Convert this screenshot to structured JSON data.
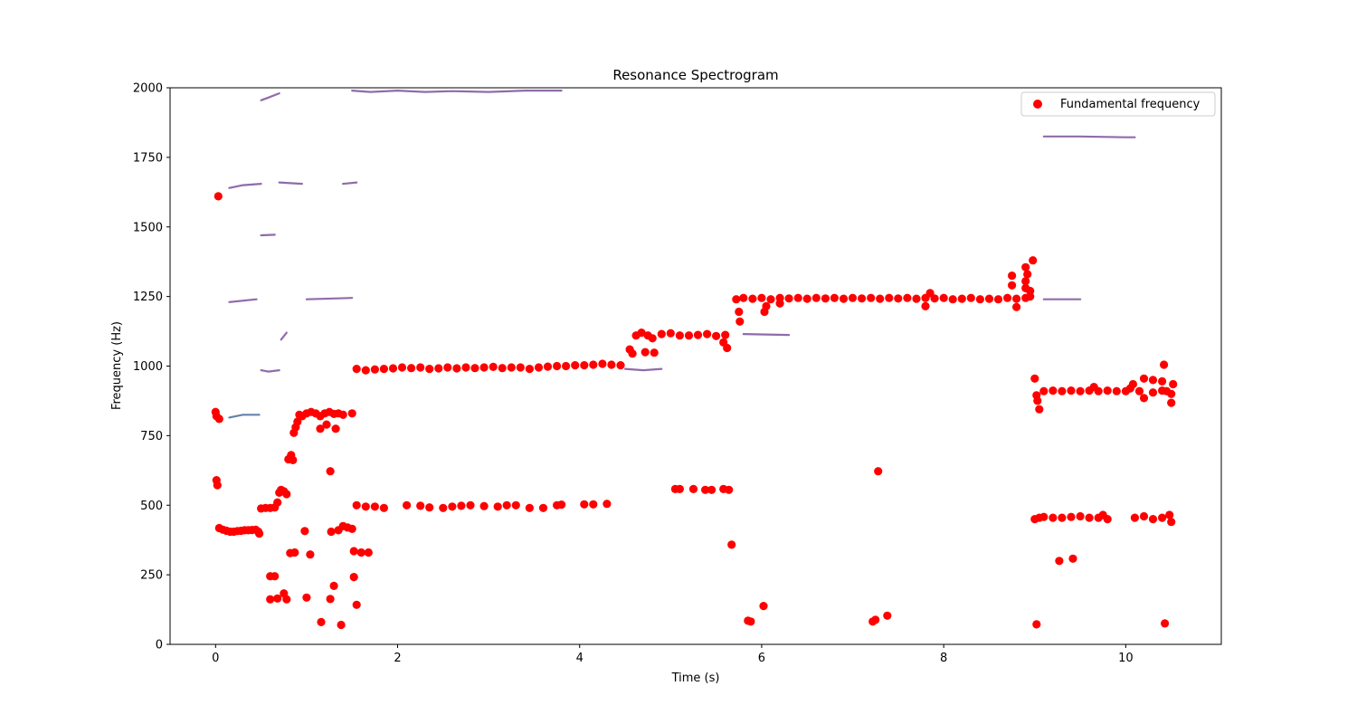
{
  "chart_data": {
    "type": "scatter",
    "title": "Resonance Spectrogram",
    "xlabel": "Time (s)",
    "ylabel": "Frequency (Hz)",
    "xlim": [
      -0.5,
      11.05
    ],
    "ylim": [
      0,
      2000
    ],
    "xticks": [
      0,
      2,
      4,
      6,
      8,
      10
    ],
    "yticks": [
      0,
      250,
      500,
      750,
      1000,
      1250,
      1500,
      1750,
      2000
    ],
    "grid": false,
    "legend_position": "top-right",
    "series": [
      {
        "name": "Fundamental frequency",
        "color": "#ff0000",
        "points": [
          [
            0.03,
            1610
          ],
          [
            0.0,
            835
          ],
          [
            0.01,
            820
          ],
          [
            0.04,
            810
          ],
          [
            0.01,
            590
          ],
          [
            0.02,
            572
          ],
          [
            0.04,
            418
          ],
          [
            0.08,
            412
          ],
          [
            0.12,
            408
          ],
          [
            0.16,
            405
          ],
          [
            0.2,
            405
          ],
          [
            0.24,
            407
          ],
          [
            0.28,
            408
          ],
          [
            0.32,
            410
          ],
          [
            0.36,
            410
          ],
          [
            0.4,
            411
          ],
          [
            0.44,
            412
          ],
          [
            0.47,
            405
          ],
          [
            0.48,
            398
          ],
          [
            0.5,
            488
          ],
          [
            0.55,
            490
          ],
          [
            0.6,
            490
          ],
          [
            0.65,
            492
          ],
          [
            0.68,
            510
          ],
          [
            0.7,
            545
          ],
          [
            0.72,
            555
          ],
          [
            0.75,
            550
          ],
          [
            0.78,
            540
          ],
          [
            0.8,
            665
          ],
          [
            0.83,
            680
          ],
          [
            0.85,
            662
          ],
          [
            0.86,
            760
          ],
          [
            0.88,
            780
          ],
          [
            0.9,
            800
          ],
          [
            0.92,
            825
          ],
          [
            0.95,
            820
          ],
          [
            1.0,
            830
          ],
          [
            1.05,
            835
          ],
          [
            1.1,
            830
          ],
          [
            1.15,
            820
          ],
          [
            1.2,
            830
          ],
          [
            1.25,
            835
          ],
          [
            1.3,
            828
          ],
          [
            1.35,
            830
          ],
          [
            1.4,
            825
          ],
          [
            1.5,
            830
          ],
          [
            1.15,
            775
          ],
          [
            1.22,
            790
          ],
          [
            1.32,
            775
          ],
          [
            1.26,
            622
          ],
          [
            1.4,
            425
          ],
          [
            1.45,
            420
          ],
          [
            1.35,
            410
          ],
          [
            1.27,
            405
          ],
          [
            1.5,
            415
          ],
          [
            0.6,
            245
          ],
          [
            0.65,
            245
          ],
          [
            0.6,
            162
          ],
          [
            0.68,
            165
          ],
          [
            0.75,
            183
          ],
          [
            0.78,
            162
          ],
          [
            0.82,
            328
          ],
          [
            0.87,
            330
          ],
          [
            0.98,
            407
          ],
          [
            1.0,
            168
          ],
          [
            1.04,
            323
          ],
          [
            1.16,
            80
          ],
          [
            1.26,
            163
          ],
          [
            1.3,
            210
          ],
          [
            1.38,
            70
          ],
          [
            1.52,
            335
          ],
          [
            1.6,
            330
          ],
          [
            1.68,
            330
          ],
          [
            1.52,
            242
          ],
          [
            1.55,
            142
          ],
          [
            1.55,
            500
          ],
          [
            1.65,
            495
          ],
          [
            1.75,
            495
          ],
          [
            1.85,
            490
          ],
          [
            2.1,
            500
          ],
          [
            2.25,
            498
          ],
          [
            2.35,
            492
          ],
          [
            2.5,
            490
          ],
          [
            2.6,
            495
          ],
          [
            2.7,
            498
          ],
          [
            2.8,
            500
          ],
          [
            2.95,
            497
          ],
          [
            3.1,
            495
          ],
          [
            3.2,
            500
          ],
          [
            3.3,
            500
          ],
          [
            3.45,
            490
          ],
          [
            3.6,
            490
          ],
          [
            3.75,
            500
          ],
          [
            3.8,
            502
          ],
          [
            4.05,
            503
          ],
          [
            4.15,
            503
          ],
          [
            4.3,
            505
          ],
          [
            1.55,
            990
          ],
          [
            1.65,
            985
          ],
          [
            1.75,
            988
          ],
          [
            1.85,
            990
          ],
          [
            1.95,
            992
          ],
          [
            2.05,
            995
          ],
          [
            2.15,
            993
          ],
          [
            2.25,
            995
          ],
          [
            2.35,
            990
          ],
          [
            2.45,
            992
          ],
          [
            2.55,
            995
          ],
          [
            2.65,
            992
          ],
          [
            2.75,
            995
          ],
          [
            2.85,
            993
          ],
          [
            2.95,
            995
          ],
          [
            3.05,
            997
          ],
          [
            3.15,
            993
          ],
          [
            3.25,
            995
          ],
          [
            3.35,
            995
          ],
          [
            3.45,
            990
          ],
          [
            3.55,
            995
          ],
          [
            3.65,
            998
          ],
          [
            3.75,
            1000
          ],
          [
            3.85,
            1000
          ],
          [
            3.95,
            1003
          ],
          [
            4.05,
            1003
          ],
          [
            4.15,
            1005
          ],
          [
            4.25,
            1008
          ],
          [
            4.35,
            1005
          ],
          [
            4.45,
            1003
          ],
          [
            4.55,
            1060
          ],
          [
            4.58,
            1045
          ],
          [
            4.62,
            1110
          ],
          [
            4.68,
            1120
          ],
          [
            4.75,
            1110
          ],
          [
            4.8,
            1100
          ],
          [
            4.9,
            1115
          ],
          [
            5.0,
            1118
          ],
          [
            5.1,
            1110
          ],
          [
            5.2,
            1110
          ],
          [
            5.3,
            1112
          ],
          [
            5.4,
            1115
          ],
          [
            5.5,
            1108
          ],
          [
            5.6,
            1112
          ],
          [
            4.72,
            1050
          ],
          [
            4.82,
            1048
          ],
          [
            5.58,
            1085
          ],
          [
            5.62,
            1065
          ],
          [
            5.05,
            558
          ],
          [
            5.1,
            558
          ],
          [
            5.25,
            558
          ],
          [
            5.38,
            555
          ],
          [
            5.45,
            555
          ],
          [
            5.58,
            558
          ],
          [
            5.64,
            555
          ],
          [
            5.67,
            358
          ],
          [
            5.72,
            1240
          ],
          [
            5.8,
            1245
          ],
          [
            5.9,
            1242
          ],
          [
            6.0,
            1245
          ],
          [
            6.1,
            1240
          ],
          [
            6.2,
            1245
          ],
          [
            6.3,
            1243
          ],
          [
            6.4,
            1245
          ],
          [
            6.5,
            1242
          ],
          [
            6.6,
            1245
          ],
          [
            6.7,
            1243
          ],
          [
            6.8,
            1245
          ],
          [
            6.9,
            1242
          ],
          [
            7.0,
            1245
          ],
          [
            7.1,
            1243
          ],
          [
            7.2,
            1245
          ],
          [
            7.3,
            1242
          ],
          [
            7.4,
            1245
          ],
          [
            7.5,
            1243
          ],
          [
            7.6,
            1245
          ],
          [
            7.7,
            1242
          ],
          [
            7.8,
            1245
          ],
          [
            7.9,
            1243
          ],
          [
            8.0,
            1245
          ],
          [
            8.1,
            1240
          ],
          [
            8.2,
            1242
          ],
          [
            8.3,
            1245
          ],
          [
            8.4,
            1240
          ],
          [
            8.5,
            1242
          ],
          [
            8.6,
            1240
          ],
          [
            8.7,
            1245
          ],
          [
            8.8,
            1242
          ],
          [
            8.9,
            1245
          ],
          [
            8.95,
            1250
          ],
          [
            5.75,
            1195
          ],
          [
            5.76,
            1160
          ],
          [
            6.05,
            1215
          ],
          [
            6.03,
            1195
          ],
          [
            6.2,
            1225
          ],
          [
            7.8,
            1215
          ],
          [
            7.85,
            1262
          ],
          [
            8.75,
            1325
          ],
          [
            8.75,
            1290
          ],
          [
            8.8,
            1212
          ],
          [
            8.9,
            1355
          ],
          [
            8.92,
            1330
          ],
          [
            8.9,
            1305
          ],
          [
            8.9,
            1280
          ],
          [
            8.95,
            1270
          ],
          [
            8.98,
            1380
          ],
          [
            5.85,
            85
          ],
          [
            5.88,
            82
          ],
          [
            6.02,
            138
          ],
          [
            7.22,
            82
          ],
          [
            7.25,
            88
          ],
          [
            7.28,
            622
          ],
          [
            7.38,
            103
          ],
          [
            9.0,
            955
          ],
          [
            9.02,
            895
          ],
          [
            9.03,
            875
          ],
          [
            9.05,
            845
          ],
          [
            9.1,
            910
          ],
          [
            9.2,
            912
          ],
          [
            9.3,
            910
          ],
          [
            9.4,
            912
          ],
          [
            9.5,
            910
          ],
          [
            9.6,
            912
          ],
          [
            9.65,
            925
          ],
          [
            9.7,
            910
          ],
          [
            9.8,
            912
          ],
          [
            9.9,
            910
          ],
          [
            10.0,
            910
          ],
          [
            10.05,
            920
          ],
          [
            10.08,
            935
          ],
          [
            10.15,
            910
          ],
          [
            10.2,
            885
          ],
          [
            10.3,
            905
          ],
          [
            10.4,
            912
          ],
          [
            10.45,
            910
          ],
          [
            10.5,
            900
          ],
          [
            10.52,
            935
          ],
          [
            10.5,
            868
          ],
          [
            10.2,
            955
          ],
          [
            10.3,
            950
          ],
          [
            10.4,
            945
          ],
          [
            10.42,
            1005
          ],
          [
            9.0,
            450
          ],
          [
            9.05,
            455
          ],
          [
            9.1,
            458
          ],
          [
            9.2,
            455
          ],
          [
            9.3,
            455
          ],
          [
            9.4,
            458
          ],
          [
            9.5,
            460
          ],
          [
            9.6,
            455
          ],
          [
            9.7,
            455
          ],
          [
            9.75,
            465
          ],
          [
            9.8,
            450
          ],
          [
            10.1,
            455
          ],
          [
            10.2,
            460
          ],
          [
            10.3,
            450
          ],
          [
            10.4,
            455
          ],
          [
            10.48,
            465
          ],
          [
            10.5,
            440
          ],
          [
            9.27,
            300
          ],
          [
            9.42,
            308
          ],
          [
            9.02,
            72
          ],
          [
            10.43,
            75
          ]
        ]
      }
    ],
    "background_traces": [
      {
        "color": "#6b3a8f",
        "segments": [
          [
            [
              0.5,
              1955
            ],
            [
              0.58,
              1965
            ],
            [
              0.7,
              1980
            ]
          ],
          [
            [
              1.5,
              1990
            ],
            [
              1.7,
              1985
            ],
            [
              2.0,
              1990
            ],
            [
              2.3,
              1985
            ],
            [
              2.6,
              1988
            ],
            [
              3.0,
              1985
            ],
            [
              3.4,
              1990
            ],
            [
              3.8,
              1990
            ]
          ],
          [
            [
              0.15,
              1640
            ],
            [
              0.3,
              1650
            ],
            [
              0.5,
              1655
            ]
          ],
          [
            [
              0.7,
              1660
            ],
            [
              0.95,
              1655
            ]
          ],
          [
            [
              1.4,
              1655
            ],
            [
              1.55,
              1660
            ]
          ],
          [
            [
              0.15,
              1230
            ],
            [
              0.45,
              1240
            ]
          ],
          [
            [
              0.5,
              1470
            ],
            [
              0.65,
              1472
            ]
          ],
          [
            [
              0.5,
              985
            ],
            [
              0.58,
              980
            ],
            [
              0.7,
              985
            ]
          ],
          [
            [
              0.72,
              1095
            ],
            [
              0.78,
              1120
            ]
          ],
          [
            [
              4.5,
              990
            ],
            [
              4.7,
              985
            ],
            [
              4.9,
              990
            ]
          ],
          [
            [
              1.0,
              1240
            ],
            [
              1.5,
              1245
            ]
          ],
          [
            [
              5.8,
              1115
            ],
            [
              6.3,
              1112
            ]
          ],
          [
            [
              9.1,
              1825
            ],
            [
              9.5,
              1825
            ],
            [
              10.0,
              1822
            ],
            [
              10.1,
              1822
            ]
          ],
          [
            [
              9.1,
              1240
            ],
            [
              9.5,
              1240
            ]
          ]
        ]
      },
      {
        "color": "#2d5b8f",
        "segments": [
          [
            [
              0.15,
              815
            ],
            [
              0.3,
              825
            ],
            [
              0.48,
              825
            ]
          ]
        ]
      }
    ]
  }
}
